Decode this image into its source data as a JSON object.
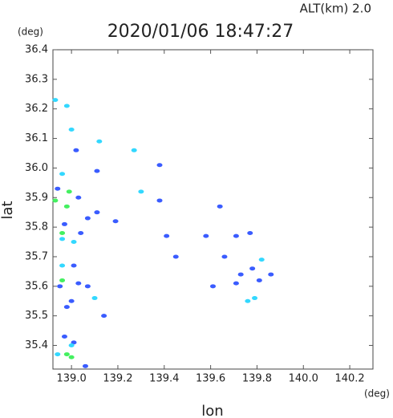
{
  "chart_data": {
    "type": "scatter",
    "title": "2020/01/06 18:47:27",
    "subtitle": "ALT(km)  2.0",
    "x_label": "lon",
    "y_label": "lat",
    "x_unit": "(deg)",
    "y_unit": "(deg)",
    "xlim": [
      138.92,
      140.3
    ],
    "ylim": [
      35.32,
      36.4
    ],
    "xticks": [
      {
        "value": 139.0,
        "label": "139.0"
      },
      139.2,
      139.4,
      139.6,
      139.8,
      {
        "value": 140.0,
        "label": "140.0"
      },
      140.2
    ],
    "yticks": [
      35.4,
      35.5,
      35.6,
      35.7,
      35.8,
      35.9,
      {
        "value": 36.0,
        "label": "36.0"
      },
      36.1,
      36.2,
      36.3,
      36.4
    ],
    "series": [
      {
        "name": "blue",
        "color": "#3a5cff",
        "x": [
          139.02,
          139.11,
          139.38,
          139.38,
          139.03,
          138.94,
          139.07,
          139.11,
          139.19,
          138.97,
          139.04,
          139.41,
          139.58,
          139.64,
          139.45,
          139.01,
          139.03,
          139.07,
          139.0,
          139.14,
          139.71,
          139.77,
          139.61,
          139.66,
          139.73,
          139.78,
          139.81,
          139.86,
          139.71,
          138.97,
          139.01,
          139.06,
          138.98,
          138.95
        ],
        "values": [
          36.06,
          35.99,
          36.01,
          35.89,
          35.9,
          35.93,
          35.83,
          35.85,
          35.82,
          35.81,
          35.78,
          35.77,
          35.77,
          35.87,
          35.7,
          35.67,
          35.61,
          35.6,
          35.55,
          35.5,
          35.77,
          35.78,
          35.6,
          35.7,
          35.64,
          35.66,
          35.62,
          35.64,
          35.61,
          35.43,
          35.41,
          35.33,
          35.53,
          35.6
        ]
      },
      {
        "name": "cyan",
        "color": "#33d8ff",
        "x": [
          138.93,
          138.98,
          139.0,
          139.12,
          139.27,
          138.96,
          139.3,
          138.96,
          139.01,
          138.96,
          139.1,
          139.82,
          139.79,
          139.76,
          139.0,
          138.94
        ],
        "values": [
          36.23,
          36.21,
          36.13,
          36.09,
          36.06,
          35.98,
          35.92,
          35.76,
          35.75,
          35.67,
          35.56,
          35.69,
          35.56,
          35.55,
          35.4,
          35.37
        ]
      },
      {
        "name": "green",
        "color": "#44f060",
        "x": [
          138.93,
          138.99,
          138.98,
          138.96,
          138.96,
          139.0,
          138.98
        ],
        "values": [
          35.89,
          35.92,
          35.87,
          35.78,
          35.62,
          35.36,
          35.37
        ]
      }
    ]
  }
}
